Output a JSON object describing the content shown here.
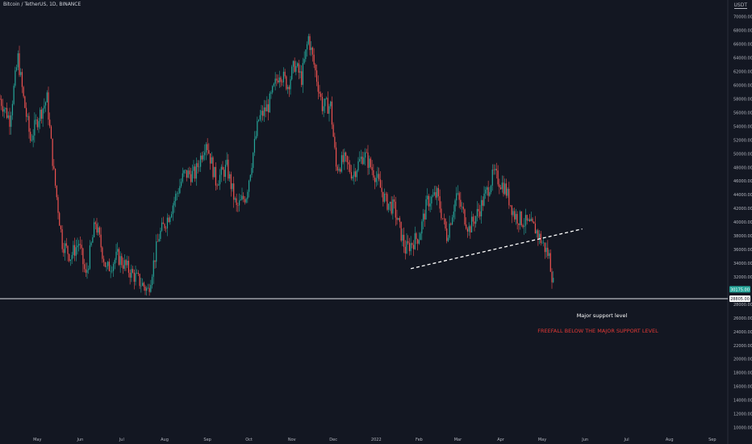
{
  "header": {
    "title": "Bitcoin / TetherUS, 1D, BINANCE",
    "currency": "USDT"
  },
  "colors": {
    "background": "#131722",
    "up": "#26a69a",
    "down": "#ef5350",
    "axis_text": "#b2b5be",
    "annotation_white": "#ffffff",
    "annotation_red": "#e53935",
    "price_tag": "#26a69a"
  },
  "chart_data": {
    "type": "candlestick",
    "title": "Bitcoin / TetherUS, 1D, BINANCE",
    "ylim": [
      9000,
      71500
    ],
    "y_ticks": [
      10000,
      12000,
      14000,
      16000,
      18000,
      20000,
      22000,
      24000,
      26000,
      28000,
      32000,
      34000,
      36000,
      38000,
      40000,
      42000,
      44000,
      46000,
      48000,
      50000,
      52000,
      54000,
      56000,
      58000,
      60000,
      62000,
      64000,
      66000,
      68000,
      70000
    ],
    "y_tick_labels": [
      "10000.00",
      "12000.00",
      "14000.00",
      "16000.00",
      "18000.00",
      "20000.00",
      "22000.00",
      "24000.00",
      "26000.00",
      "28000.00",
      "32000.00",
      "34000.00",
      "36000.00",
      "38000.00",
      "40000.00",
      "42000.00",
      "44000.00",
      "46000.00",
      "48000.00",
      "50000.00",
      "52000.00",
      "54000.00",
      "56000.00",
      "58000.00",
      "60000.00",
      "62000.00",
      "64000.00",
      "66000.00",
      "68000.00",
      "70000.00"
    ],
    "x_ticks": [
      {
        "label": "May",
        "day": 0
      },
      {
        "label": "Jun",
        "day": 31
      },
      {
        "label": "Jul",
        "day": 61
      },
      {
        "label": "Aug",
        "day": 92
      },
      {
        "label": "Sep",
        "day": 123
      },
      {
        "label": "Oct",
        "day": 153
      },
      {
        "label": "Nov",
        "day": 184
      },
      {
        "label": "Dec",
        "day": 214
      },
      {
        "label": "2022",
        "day": 245
      },
      {
        "label": "Feb",
        "day": 276
      },
      {
        "label": "Mar",
        "day": 304
      },
      {
        "label": "Apr",
        "day": 335
      },
      {
        "label": "May",
        "day": 365
      },
      {
        "label": "Jun",
        "day": 396
      },
      {
        "label": "Jul",
        "day": 426
      },
      {
        "label": "Aug",
        "day": 457
      },
      {
        "label": "Sep",
        "day": 488
      }
    ],
    "x_range_days": [
      -27,
      498
    ],
    "anchors": [
      {
        "day": -27,
        "price": 58000
      },
      {
        "day": -20,
        "price": 55000
      },
      {
        "day": -14,
        "price": 64000
      },
      {
        "day": -10,
        "price": 58000
      },
      {
        "day": -5,
        "price": 52000
      },
      {
        "day": 0,
        "price": 55000
      },
      {
        "day": 7,
        "price": 58000
      },
      {
        "day": 12,
        "price": 47000
      },
      {
        "day": 18,
        "price": 37000
      },
      {
        "day": 24,
        "price": 35000
      },
      {
        "day": 30,
        "price": 37000
      },
      {
        "day": 35,
        "price": 32000
      },
      {
        "day": 42,
        "price": 40000
      },
      {
        "day": 50,
        "price": 33000
      },
      {
        "day": 58,
        "price": 35000
      },
      {
        "day": 66,
        "price": 33000
      },
      {
        "day": 80,
        "price": 30000
      },
      {
        "day": 88,
        "price": 38000
      },
      {
        "day": 95,
        "price": 41000
      },
      {
        "day": 106,
        "price": 47000
      },
      {
        "day": 114,
        "price": 47000
      },
      {
        "day": 122,
        "price": 52000
      },
      {
        "day": 129,
        "price": 46000
      },
      {
        "day": 137,
        "price": 48000
      },
      {
        "day": 144,
        "price": 42000
      },
      {
        "day": 151,
        "price": 44000
      },
      {
        "day": 160,
        "price": 55000
      },
      {
        "day": 167,
        "price": 57000
      },
      {
        "day": 175,
        "price": 62000
      },
      {
        "day": 181,
        "price": 60000
      },
      {
        "day": 186,
        "price": 63000
      },
      {
        "day": 191,
        "price": 61000
      },
      {
        "day": 196,
        "price": 67000
      },
      {
        "day": 200,
        "price": 63000
      },
      {
        "day": 206,
        "price": 57000
      },
      {
        "day": 212,
        "price": 57000
      },
      {
        "day": 216,
        "price": 48000
      },
      {
        "day": 222,
        "price": 49000
      },
      {
        "day": 228,
        "price": 47000
      },
      {
        "day": 236,
        "price": 50000
      },
      {
        "day": 244,
        "price": 47000
      },
      {
        "day": 252,
        "price": 43000
      },
      {
        "day": 258,
        "price": 42000
      },
      {
        "day": 266,
        "price": 36000
      },
      {
        "day": 276,
        "price": 38000
      },
      {
        "day": 282,
        "price": 43000
      },
      {
        "day": 289,
        "price": 44000
      },
      {
        "day": 296,
        "price": 38000
      },
      {
        "day": 303,
        "price": 44000
      },
      {
        "day": 312,
        "price": 39000
      },
      {
        "day": 320,
        "price": 42000
      },
      {
        "day": 330,
        "price": 47000
      },
      {
        "day": 338,
        "price": 45000
      },
      {
        "day": 345,
        "price": 41000
      },
      {
        "day": 352,
        "price": 40000
      },
      {
        "day": 360,
        "price": 39000
      },
      {
        "day": 365,
        "price": 37000
      },
      {
        "day": 370,
        "price": 35000
      },
      {
        "day": 373,
        "price": 31000
      }
    ],
    "trendline": {
      "from": {
        "day": 270,
        "price": 33200
      },
      "to": {
        "day": 394,
        "price": 39000
      },
      "style": "dashed"
    },
    "support_level": {
      "price": 28805,
      "label": "28805.00"
    },
    "last_price": {
      "price": 30175,
      "label": "30175.00"
    }
  },
  "annotations": {
    "support_text": "Major support level",
    "freefall_text": "FREEFALL BELOW THE MAJOR SUPPORT LEVEL"
  }
}
